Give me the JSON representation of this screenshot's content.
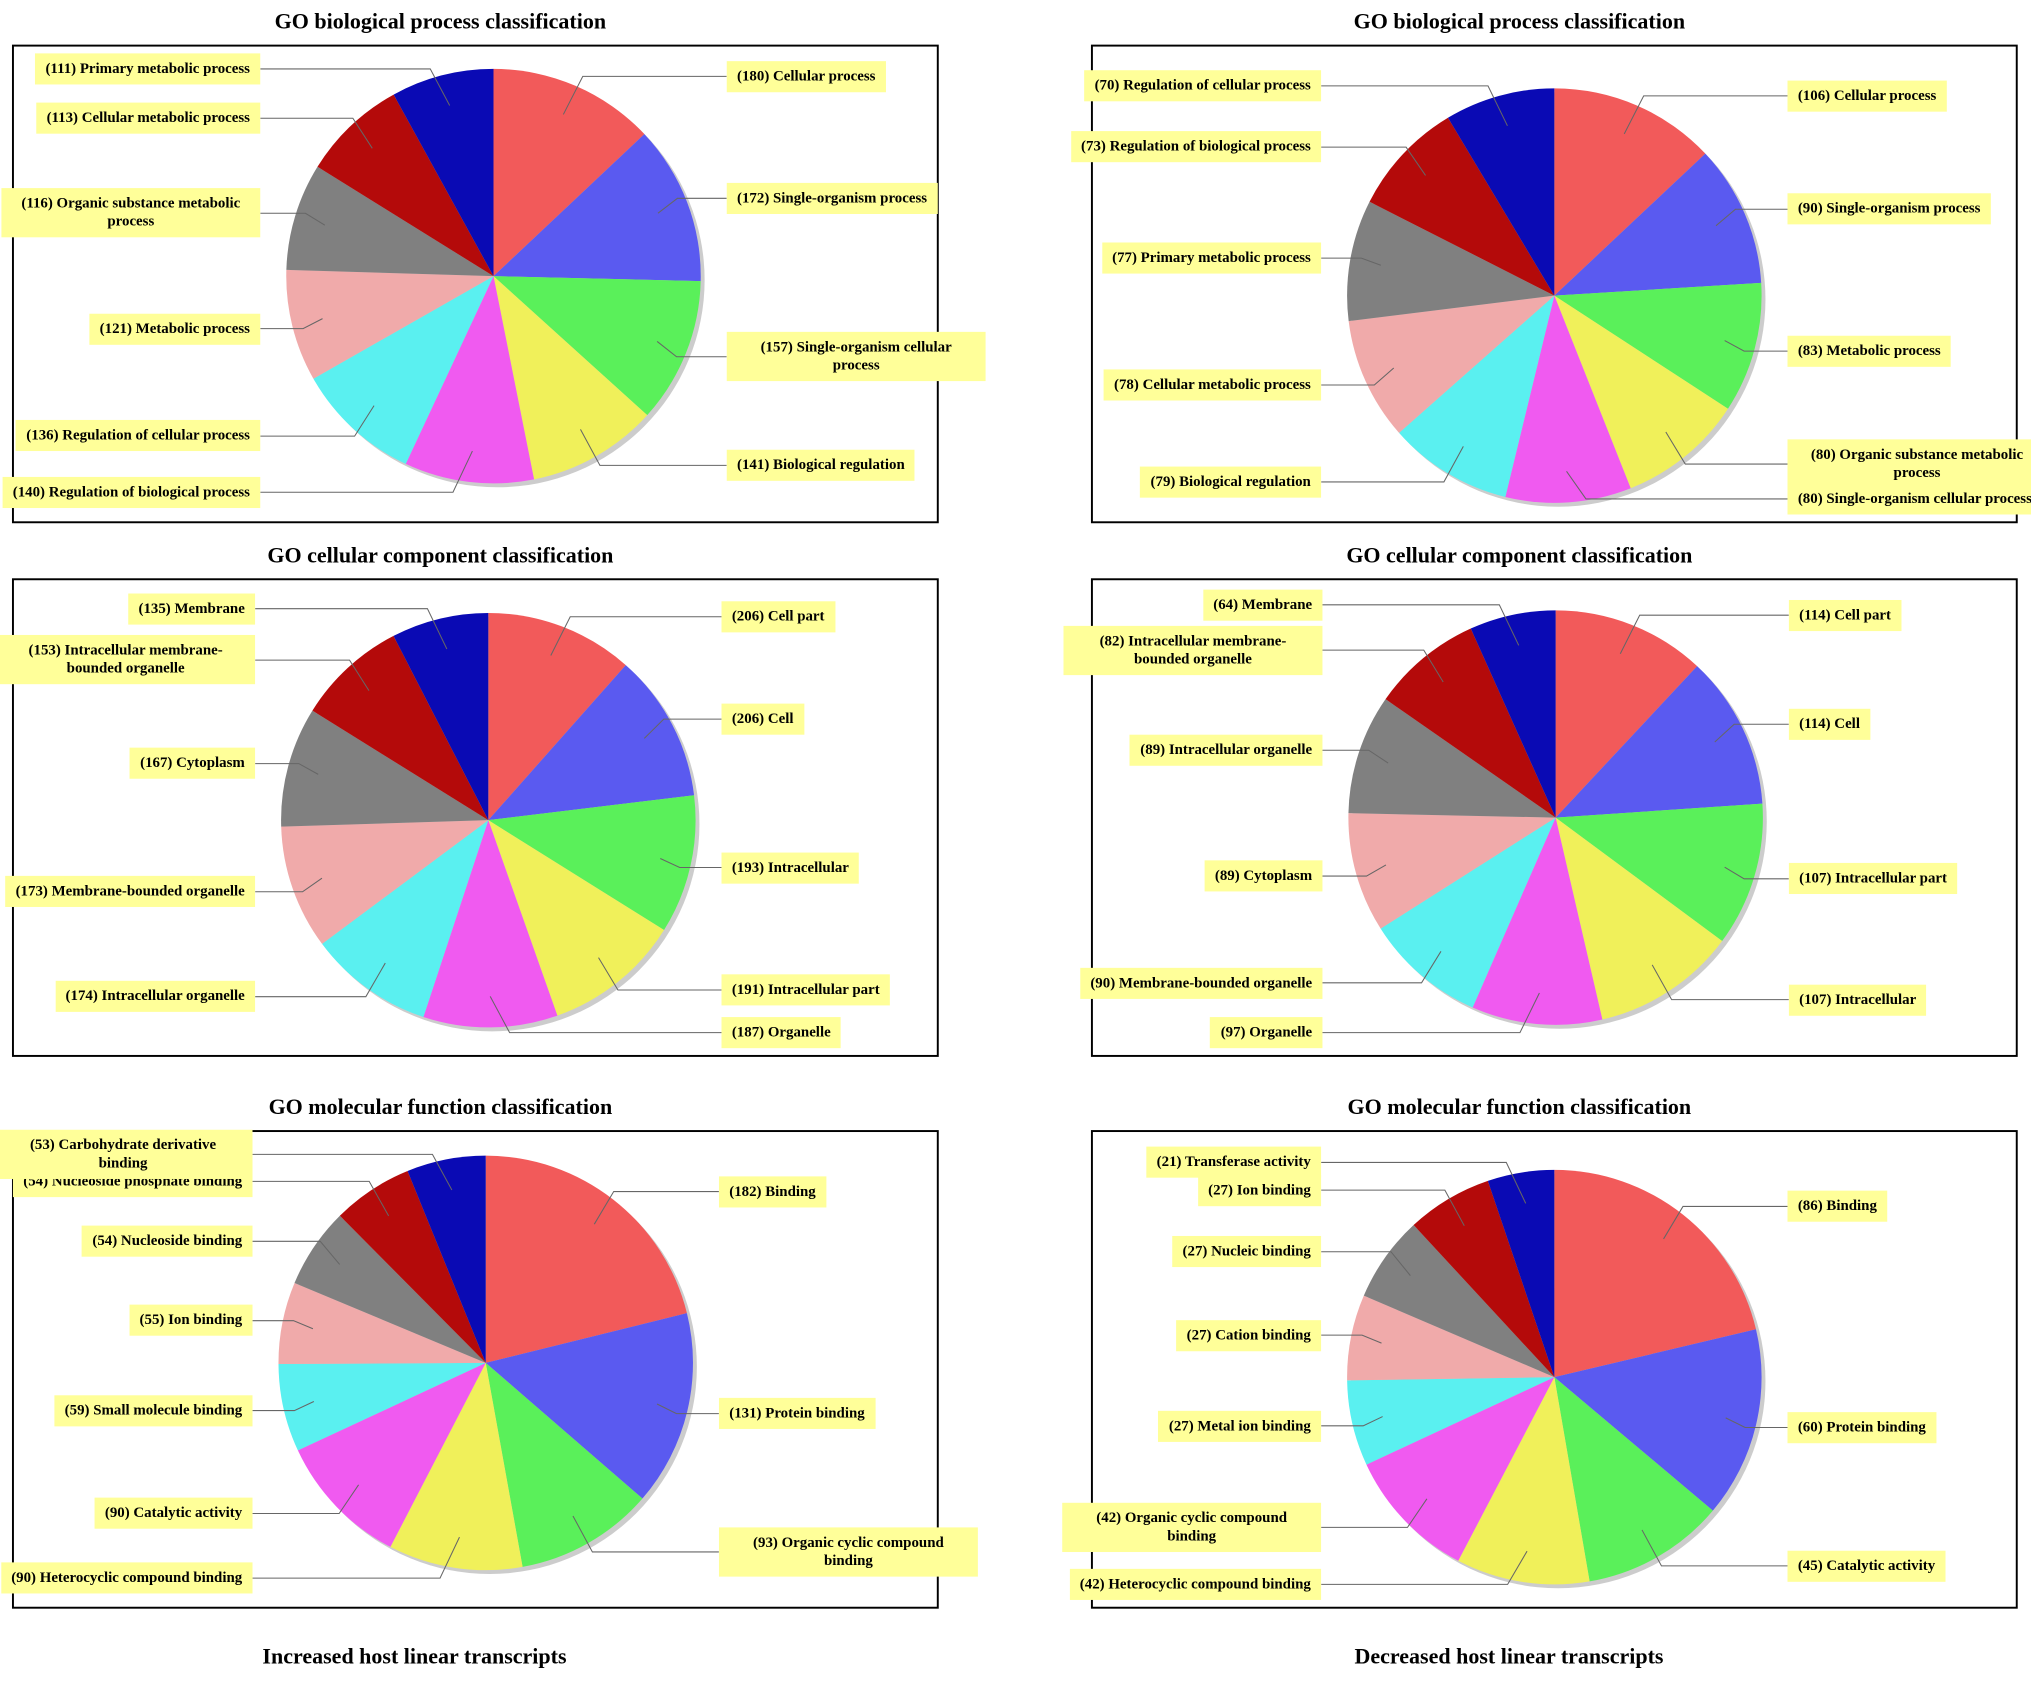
{
  "chart_data": [
    {
      "type": "pie",
      "title": "GO biological process classification",
      "categories": [
        "(180) Cellular process",
        "(172) Single-organism process",
        "(157) Single-organism cellular process",
        "(141) Biological regulation",
        "(140) Regulation of biological process",
        "(136) Regulation of cellular process",
        "(121) Metabolic process",
        "(116) Organic substance metabolic process",
        "(113) Cellular metabolic process",
        "(111) Primary metabolic process"
      ],
      "values": [
        180,
        172,
        157,
        141,
        140,
        136,
        121,
        116,
        113,
        111
      ],
      "colors": [
        "#f25a5a",
        "#5a5af0",
        "#5af05a",
        "#f0f05a",
        "#f05af0",
        "#5af0f0",
        "#f0aaaa",
        "#808080",
        "#b40a0a",
        "#0a0ab4"
      ]
    },
    {
      "type": "pie",
      "title": "GO biological process classification",
      "categories": [
        "(106) Cellular process",
        "(90) Single-organism process",
        "(83) Metabolic process",
        "(80) Organic substance metabolic process",
        "(80) Single-organism cellular process",
        "(79) Biological regulation",
        "(78) Cellular metabolic process",
        "(77) Primary metabolic process",
        "(73) Regulation of biological process",
        "(70) Regulation of cellular process"
      ],
      "values": [
        106,
        90,
        83,
        80,
        80,
        79,
        78,
        77,
        73,
        70
      ],
      "colors": [
        "#f25a5a",
        "#5a5af0",
        "#5af05a",
        "#f0f05a",
        "#f05af0",
        "#5af0f0",
        "#f0aaaa",
        "#808080",
        "#b40a0a",
        "#0a0ab4"
      ]
    },
    {
      "type": "pie",
      "title": "GO cellular component classification",
      "categories": [
        "(206) Cell part",
        "(206) Cell",
        "(193) Intracellular",
        "(191) Intracellular part",
        "(187) Organelle",
        "(174) Intracellular organelle",
        "(173) Membrane-bounded organelle",
        "(167) Cytoplasm",
        "(153) Intracellular membrane-bounded organelle",
        "(135) Membrane"
      ],
      "values": [
        206,
        206,
        193,
        191,
        187,
        174,
        173,
        167,
        153,
        135
      ],
      "colors": [
        "#f25a5a",
        "#5a5af0",
        "#5af05a",
        "#f0f05a",
        "#f05af0",
        "#5af0f0",
        "#f0aaaa",
        "#808080",
        "#b40a0a",
        "#0a0ab4"
      ]
    },
    {
      "type": "pie",
      "title": "GO cellular component classification",
      "categories": [
        "(114) Cell part",
        "(114) Cell",
        "(107) Intracellular part",
        "(107) Intracellular",
        "(97) Organelle",
        "(90) Membrane-bounded organelle",
        "(89) Cytoplasm",
        "(89) Intracellular organelle",
        "(82) Intracellular membrane-bounded organelle",
        "(64) Membrane"
      ],
      "values": [
        114,
        114,
        107,
        107,
        97,
        90,
        89,
        89,
        82,
        64
      ],
      "colors": [
        "#f25a5a",
        "#5a5af0",
        "#5af05a",
        "#f0f05a",
        "#f05af0",
        "#5af0f0",
        "#f0aaaa",
        "#808080",
        "#b40a0a",
        "#0a0ab4"
      ]
    },
    {
      "type": "pie",
      "title": "GO molecular function classification",
      "categories": [
        "(182) Binding",
        "(131) Protein binding",
        "(93) Organic cyclic compound binding",
        "(90) Heterocyclic compound binding",
        "(90) Catalytic activity",
        "(59) Small molecule binding",
        "(55) Ion binding",
        "(54) Nucleoside binding",
        "(54) Nucleoside phosphate binding",
        "(53) Carbohydrate derivative binding"
      ],
      "values": [
        182,
        131,
        93,
        90,
        90,
        59,
        55,
        54,
        54,
        53
      ],
      "colors": [
        "#f25a5a",
        "#5a5af0",
        "#5af05a",
        "#f0f05a",
        "#f05af0",
        "#5af0f0",
        "#f0aaaa",
        "#808080",
        "#b40a0a",
        "#0a0ab4"
      ]
    },
    {
      "type": "pie",
      "title": "GO molecular function classification",
      "categories": [
        "(86) Binding",
        "(60) Protein binding",
        "(45) Catalytic activity",
        "(42) Heterocyclic compound binding",
        "(42) Organic cyclic compound binding",
        "(27) Metal ion binding",
        "(27) Cation binding",
        "(27) Nucleic binding",
        "(27) Ion binding",
        "(21) Transferase activity"
      ],
      "values": [
        86,
        60,
        45,
        42,
        42,
        27,
        27,
        27,
        27,
        21
      ],
      "colors": [
        "#f25a5a",
        "#5a5af0",
        "#5af05a",
        "#f0f05a",
        "#f05af0",
        "#5af0f0",
        "#f0aaaa",
        "#808080",
        "#b40a0a",
        "#0a0ab4"
      ]
    }
  ],
  "captions": [
    "Increased host linear transcripts",
    "Decreased host linear transcripts"
  ]
}
